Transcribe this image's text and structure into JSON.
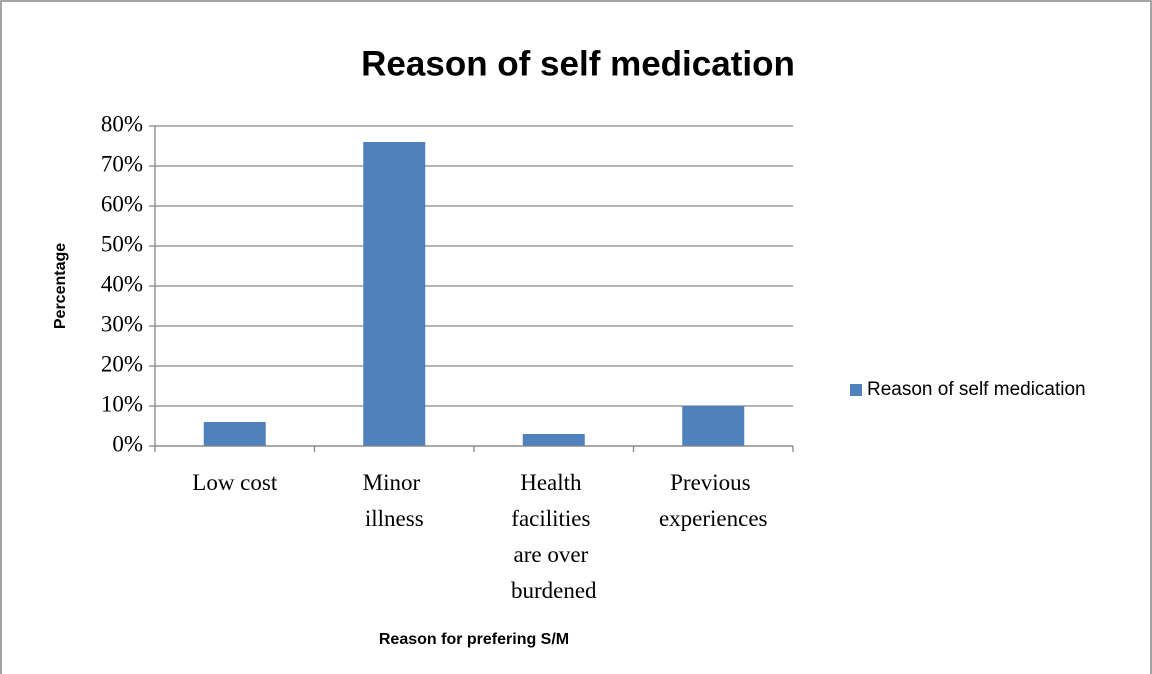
{
  "chart_data": {
    "type": "bar",
    "title": "Reason of self medication",
    "x_label": "Reason for prefering S/M",
    "y_label": "Percentage",
    "categories": [
      "Low cost",
      "Minor illness",
      "Health facilities are over burdened",
      "Previous experiences"
    ],
    "series": [
      {
        "name": "Reason of self medication",
        "color": "#4f81bd",
        "values": [
          6,
          76,
          3,
          10
        ]
      }
    ],
    "ylim": [
      0,
      80
    ],
    "yticks": [
      {
        "value": 0,
        "label": "0%"
      },
      {
        "value": 10,
        "label": "10%"
      },
      {
        "value": 20,
        "label": "20%"
      },
      {
        "value": 30,
        "label": "30%"
      },
      {
        "value": 40,
        "label": "40%"
      },
      {
        "value": 50,
        "label": "50%"
      },
      {
        "value": 60,
        "label": "60%"
      },
      {
        "value": 70,
        "label": "70%"
      },
      {
        "value": 80,
        "label": "80%"
      }
    ],
    "grid": true,
    "legend": "right"
  }
}
